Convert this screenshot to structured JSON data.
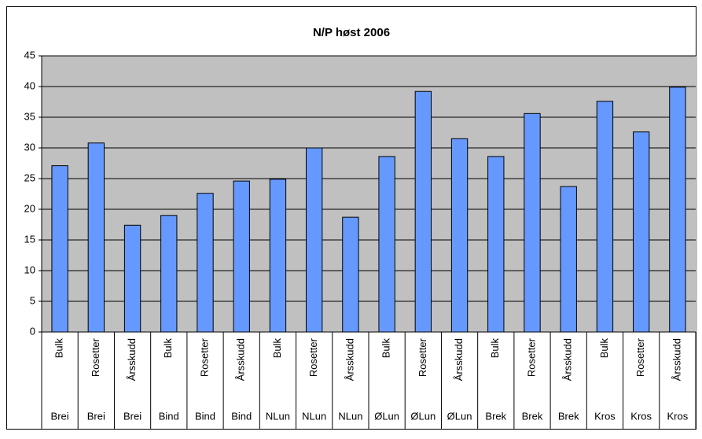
{
  "chart_data": {
    "type": "bar",
    "title": "N/P høst 2006",
    "categories": [
      "Bulk",
      "Rosetter",
      "Årsskudd",
      "Bulk",
      "Rosetter",
      "Årsskudd",
      "Bulk",
      "Rosetter",
      "Årsskudd",
      "Bulk",
      "Rosetter",
      "Årsskudd",
      "Bulk",
      "Rosetter",
      "Årsskudd",
      "Bulk",
      "Rosetter",
      "Årsskudd"
    ],
    "category_groups": [
      "Brei",
      "Brei",
      "Brei",
      "Bind",
      "Bind",
      "Bind",
      "NLun",
      "NLun",
      "NLun",
      "ØLun",
      "ØLun",
      "ØLun",
      "Brek",
      "Brek",
      "Brek",
      "Kros",
      "Kros",
      "Kros"
    ],
    "values": [
      27.1,
      30.8,
      17.4,
      19.0,
      22.6,
      24.6,
      24.9,
      30.0,
      18.7,
      28.6,
      39.2,
      31.5,
      28.6,
      35.6,
      23.7,
      37.6,
      32.6,
      39.9
    ],
    "color": "#6699ff",
    "ylim": [
      0,
      45
    ],
    "yticks": [
      0,
      5,
      10,
      15,
      20,
      25,
      30,
      35,
      40,
      45
    ],
    "grid": true
  }
}
